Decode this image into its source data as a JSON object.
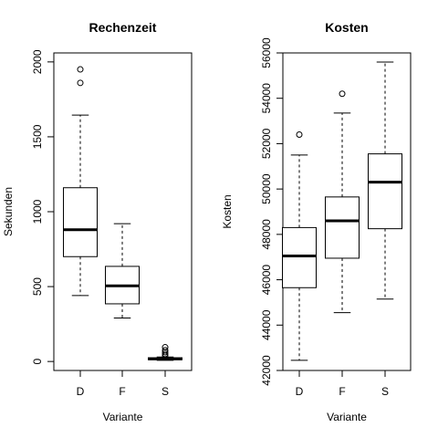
{
  "chart_data": [
    {
      "type": "boxplot",
      "title": "Rechenzeit",
      "xlabel": "Variante",
      "ylabel": "Sekunden",
      "ylim": [
        -60,
        2060
      ],
      "yticks": [
        0,
        500,
        1000,
        1500,
        2000
      ],
      "ytick_labels": [
        "0",
        "500",
        "1000",
        "1500",
        "2000"
      ],
      "categories": [
        "D",
        "F",
        "S"
      ],
      "boxes": [
        {
          "category": "D",
          "whisker_low": 440,
          "q1": 700,
          "median": 880,
          "q3": 1160,
          "whisker_high": 1645,
          "outliers": [
            1860,
            1950
          ]
        },
        {
          "category": "F",
          "whisker_low": 290,
          "q1": 385,
          "median": 505,
          "q3": 635,
          "whisker_high": 920,
          "outliers": []
        },
        {
          "category": "S",
          "whisker_low": 8,
          "q1": 12,
          "median": 18,
          "q3": 25,
          "whisker_high": 30,
          "outliers": [
            38,
            50,
            62,
            75,
            95
          ]
        }
      ]
    },
    {
      "type": "boxplot",
      "title": "Kosten",
      "xlabel": "Variante",
      "ylabel": "Kosten",
      "ylim": [
        42000,
        56000
      ],
      "yticks": [
        42000,
        44000,
        46000,
        48000,
        50000,
        52000,
        54000,
        56000
      ],
      "ytick_labels": [
        "42000",
        "44000",
        "46000",
        "48000",
        "50000",
        "52000",
        "54000",
        "56000"
      ],
      "categories": [
        "D",
        "F",
        "S"
      ],
      "boxes": [
        {
          "category": "D",
          "whisker_low": 42450,
          "q1": 45650,
          "median": 47050,
          "q3": 48300,
          "whisker_high": 51500,
          "outliers": [
            52400
          ]
        },
        {
          "category": "F",
          "whisker_low": 44550,
          "q1": 46950,
          "median": 48600,
          "q3": 49650,
          "whisker_high": 53350,
          "outliers": [
            54200
          ]
        },
        {
          "category": "S",
          "whisker_low": 45150,
          "q1": 48250,
          "median": 50300,
          "q3": 51550,
          "whisker_high": 55600,
          "outliers": []
        }
      ]
    }
  ]
}
